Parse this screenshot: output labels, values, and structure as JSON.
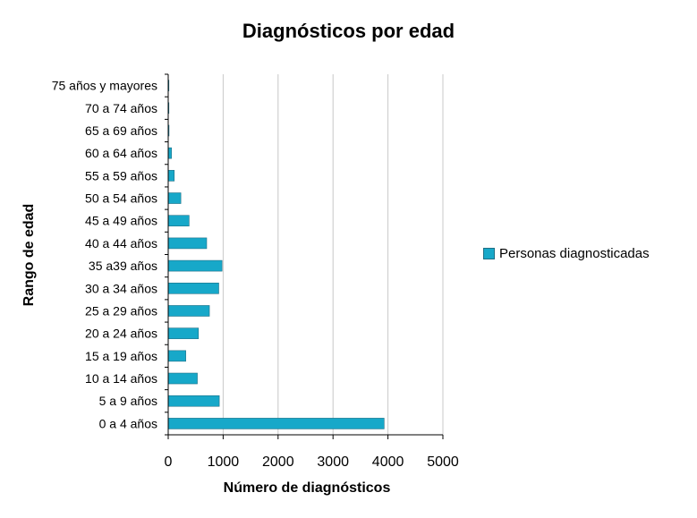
{
  "chart_data": {
    "type": "bar",
    "orientation": "horizontal",
    "title": "Diagnósticos por edad",
    "xlabel": "Número de diagnósticos",
    "ylabel": "Rango de edad",
    "xlim": [
      0,
      5000
    ],
    "xticks": [
      "0",
      "1000",
      "2000",
      "3000",
      "4000",
      "5000"
    ],
    "grid": "vertical",
    "legend": "right",
    "categories": [
      "0 a 4 años",
      "5 a 9 años",
      "10 a 14 años",
      "15 a 19 años",
      "20 a 24 años",
      "25 a 29 años",
      "30 a 34 años",
      "35 a39 años",
      "40 a 44 años",
      "45 a 49 años",
      "50 a 54 años",
      "55 a 59 años",
      "60 a 64 años",
      "65 a 69 años",
      "70 a 74 años",
      "75 años y mayores"
    ],
    "series": [
      {
        "name": "Personas diagnosticadas",
        "color": "#17a8c9",
        "values": [
          3930,
          930,
          530,
          320,
          550,
          750,
          920,
          980,
          700,
          380,
          230,
          110,
          60,
          15,
          10,
          3
        ]
      }
    ]
  }
}
